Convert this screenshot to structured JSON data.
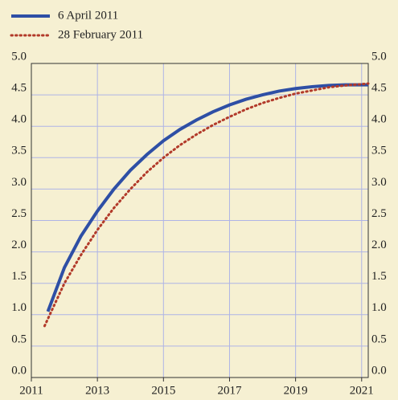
{
  "chart_data": {
    "type": "line",
    "series": [
      {
        "name": "6 April 2011",
        "color": "#2e4fa5",
        "dash": "solid",
        "x": [
          2011.5,
          2012,
          2012.5,
          2013,
          2013.5,
          2014,
          2014.5,
          2015,
          2015.5,
          2016,
          2016.5,
          2017,
          2017.5,
          2018,
          2018.5,
          2019,
          2019.5,
          2020,
          2020.5,
          2021,
          2021.2
        ],
        "values": [
          1.05,
          1.75,
          2.25,
          2.65,
          3.0,
          3.3,
          3.55,
          3.77,
          3.95,
          4.1,
          4.23,
          4.34,
          4.43,
          4.5,
          4.56,
          4.6,
          4.63,
          4.65,
          4.66,
          4.66,
          4.66
        ]
      },
      {
        "name": "28 February 2011",
        "color": "#b23a2a",
        "dash": "dotted",
        "x": [
          2011.4,
          2012,
          2012.5,
          2013,
          2013.5,
          2014,
          2014.5,
          2015,
          2015.5,
          2016,
          2016.5,
          2017,
          2017.5,
          2018,
          2018.5,
          2019,
          2019.5,
          2020,
          2020.5,
          2021,
          2021.2
        ],
        "values": [
          0.82,
          1.5,
          1.95,
          2.35,
          2.7,
          3.0,
          3.27,
          3.5,
          3.7,
          3.87,
          4.02,
          4.15,
          4.27,
          4.37,
          4.45,
          4.52,
          4.57,
          4.62,
          4.65,
          4.67,
          4.68
        ]
      }
    ],
    "xlim": [
      2011,
      2021.2
    ],
    "xticks": [
      2011,
      2013,
      2015,
      2017,
      2019,
      2021
    ],
    "ylim": [
      0,
      5
    ],
    "yticks": [
      {
        "value": 0,
        "label": "0.0"
      },
      0.5,
      {
        "value": 1,
        "label": "1.0"
      },
      1.5,
      {
        "value": 2,
        "label": "2.0"
      },
      2.5,
      {
        "value": 3,
        "label": "3.0"
      },
      3.5,
      {
        "value": 4,
        "label": "4.0"
      },
      4.5,
      {
        "value": 5,
        "label": "5.0"
      }
    ],
    "grid": true,
    "grid_color": "#aeb4e6",
    "legend": "top-left"
  }
}
